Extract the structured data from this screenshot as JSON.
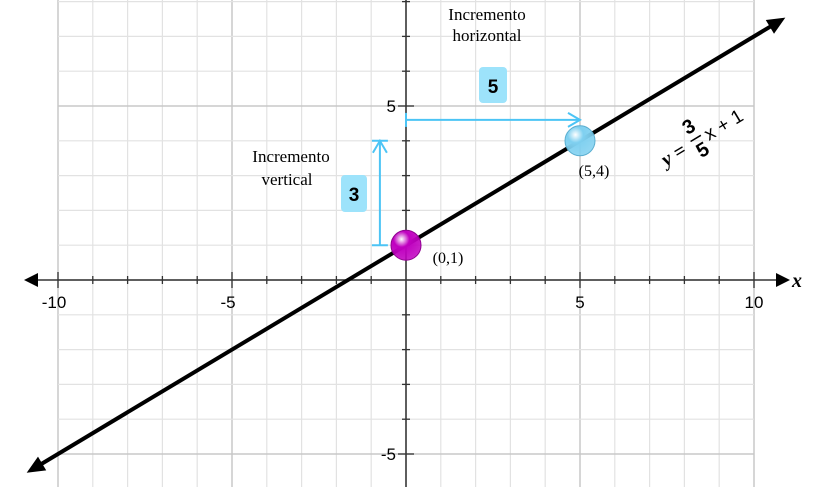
{
  "chart_data": {
    "type": "line",
    "xlim": [
      -11,
      11
    ],
    "ylim": [
      -6,
      8
    ],
    "grid": true,
    "x_ticks": [
      -10,
      -5,
      5,
      10
    ],
    "y_ticks": [
      5,
      -5
    ],
    "x_tick_labels": [
      "-10",
      "-5",
      "5",
      "10"
    ],
    "y_tick_labels": [
      "5",
      "-5"
    ],
    "xlabel": "x",
    "equation": {
      "lhs": "y =",
      "num": "3",
      "den": "5",
      "rhs": "x + 1"
    },
    "line": {
      "slope": 0.6,
      "intercept": 1,
      "x_range": [
        -10.9,
        10.9
      ]
    },
    "points": [
      {
        "x": 0,
        "y": 1,
        "label": "(0,1)",
        "color": "#c000c0"
      },
      {
        "x": 5,
        "y": 4,
        "label": "(5,4)",
        "color": "#7fd0f0"
      }
    ],
    "annotations": {
      "horizontal": {
        "line1": "Incremento",
        "line2": "horizontal",
        "value": "5"
      },
      "vertical": {
        "line1": "Incremento",
        "line2": "vertical",
        "value": "3"
      }
    },
    "colors": {
      "arrow": "#4cc4f5",
      "badge": "#9de3fb",
      "line": "#000000",
      "grid": "#e2e2e2",
      "grid_major": "#c8c8c8"
    }
  }
}
